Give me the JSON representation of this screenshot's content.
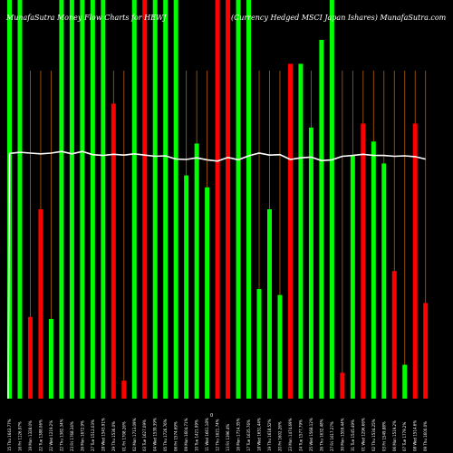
{
  "header": {
    "left_title": "MunafaSutra  Money Flow Charts for HEWJ",
    "right_title": "(Currency Hedged MSCI Japan Ishares) MunafaSutra.com"
  },
  "colors": {
    "background": "#000000",
    "up": "#00ff00",
    "down": "#ff0000",
    "line": "#ffffff",
    "grid": "#b45f06"
  },
  "chart_data": {
    "type": "bar",
    "title": "MunafaSutra  Money Flow Charts for HEWJ",
    "subtitle": "(Currency Hedged MSCI Japan Ishares) MunafaSutra.com",
    "zero_label": "0",
    "grid": true,
    "categories": [
      "15 Thu 1643.77%",
      "16 Fri 1126.97%",
      "19 Mon 1328.0%",
      "22 Tue 1388.06%",
      "22 Wed 1219.2%",
      "22 Thu 1382.34%",
      "23 Fri 1768.34%",
      "26 Mon 1672.9%",
      "27 Tue 1512.03%",
      "28 Wed 1543.91%",
      "29 Thu 1536.0%",
      "01 Fri 1708.26%",
      "02 Mon 1713.09%",
      "03 Tue 1627.09%",
      "04 Wed 1539.39%",
      "05 Thu 1726.76%",
      "06 Fri 1574.69%",
      "09 Mon 1604.71%",
      "10 Tue 1421.99%",
      "11 Wed 1661.18%",
      "12 Thu 1621.74%",
      "13 Fri 1396.4%",
      "16 Mon 1714.35%",
      "17 Tue 1635.76%",
      "18 Wed 1651.44%",
      "19 Thu 1618.52%",
      "20 Fri 1602.26%",
      "23 Mon 1474.69%",
      "24 Tue 1577.79%",
      "25 Wed 1568.12%",
      "26 Thu 1632.48%",
      "27 Fri 1617.27%",
      "30 Mon 1559.44%",
      "31 Tue 1545.49%",
      "01 Wed 1296.66%",
      "02 Thu 1534.25%",
      "03 Fri 1549.88%",
      "06 Mon 1519.2%",
      "07 Tue 1779.2%",
      "08 Wed 1514.6%",
      "09 Thu 1600.0%"
    ],
    "direction": [
      "up",
      "up",
      "down",
      "down",
      "up",
      "up",
      "up",
      "up",
      "up",
      "up",
      "down",
      "down",
      "up",
      "down",
      "up",
      "up",
      "up",
      "up",
      "up",
      "up",
      "down",
      "down",
      "up",
      "up",
      "up",
      "up",
      "up",
      "down",
      "up",
      "up",
      "up",
      "up",
      "down",
      "up",
      "down",
      "up",
      "up",
      "down",
      "up",
      "down",
      "down"
    ],
    "values": [
      100,
      100,
      20.5,
      47.5,
      20,
      100,
      100,
      100,
      100,
      100,
      74,
      4.5,
      100,
      100,
      100,
      100,
      100,
      56,
      64,
      53,
      100,
      100,
      100,
      100,
      27.5,
      47.5,
      26,
      84,
      84,
      68,
      90,
      100,
      6.5,
      61,
      69,
      64.5,
      59,
      32,
      8.5,
      69,
      24
    ],
    "line": [
      61.5,
      61.8,
      61.6,
      61.4,
      61.6,
      62.0,
      61.4,
      62.0,
      61.2,
      61.0,
      61.3,
      61.1,
      61.4,
      61.1,
      60.8,
      60.9,
      60.1,
      60.0,
      60.4,
      59.9,
      59.6,
      60.5,
      59.9,
      60.9,
      61.6,
      61.1,
      61.2,
      60.0,
      60.4,
      60.6,
      59.7,
      59.9,
      60.8,
      61.0,
      61.3,
      61.0,
      61.0,
      60.8,
      60.9,
      60.7,
      60.1
    ],
    "ylim": [
      0,
      100
    ],
    "xlabel": "",
    "ylabel": ""
  }
}
